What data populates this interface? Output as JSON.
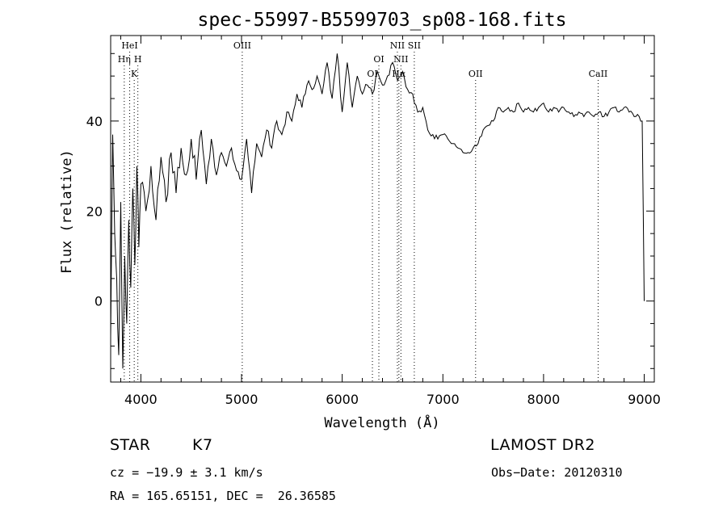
{
  "chart_data": {
    "type": "line",
    "title": "spec-55997-B5599703_sp08-168.fits",
    "xlabel": "Wavelength (Å)",
    "ylabel": "Flux (relative)",
    "xlim": [
      3700,
      9100
    ],
    "ylim": [
      -18,
      59
    ],
    "xticks": [
      4000,
      5000,
      6000,
      7000,
      8000,
      9000
    ],
    "yticks": [
      0,
      20,
      40
    ],
    "grid": false,
    "series": [
      {
        "x": [
          3700,
          3720,
          3740,
          3760,
          3780,
          3800,
          3820,
          3840,
          3860,
          3880,
          3900,
          3920,
          3940,
          3960,
          3980,
          4000,
          4050,
          4100,
          4150,
          4200,
          4250,
          4300,
          4350,
          4400,
          4450,
          4500,
          4550,
          4600,
          4650,
          4700,
          4750,
          4800,
          4850,
          4900,
          4950,
          5000,
          5050,
          5100,
          5150,
          5200,
          5250,
          5300,
          5350,
          5400,
          5450,
          5500,
          5550,
          5600,
          5650,
          5700,
          5750,
          5800,
          5850,
          5900,
          5950,
          6000,
          6050,
          6100,
          6150,
          6200,
          6250,
          6300,
          6350,
          6400,
          6450,
          6500,
          6550,
          6600,
          6650,
          6700,
          6750,
          6800,
          6850,
          6900,
          6950,
          7000,
          7050,
          7100,
          7150,
          7200,
          7250,
          7300,
          7350,
          7400,
          7450,
          7500,
          7550,
          7600,
          7650,
          7700,
          7750,
          7800,
          7850,
          7900,
          7950,
          8000,
          8050,
          8100,
          8150,
          8200,
          8250,
          8300,
          8350,
          8400,
          8450,
          8500,
          8550,
          8600,
          8650,
          8700,
          8750,
          8800,
          8850,
          8900,
          8950,
          8980,
          9000
        ],
        "y": [
          -8,
          37,
          15,
          5,
          -12,
          22,
          -15,
          10,
          -5,
          18,
          3,
          25,
          8,
          30,
          12,
          26,
          20,
          30,
          18,
          32,
          22,
          33,
          24,
          34,
          28,
          36,
          27,
          38,
          26,
          36,
          28,
          33,
          30,
          34,
          29,
          27,
          36,
          24,
          35,
          32,
          38,
          34,
          40,
          37,
          42,
          40,
          46,
          43,
          48,
          47,
          50,
          46,
          53,
          45,
          55,
          42,
          53,
          43,
          50,
          46,
          48,
          46,
          51,
          48,
          50,
          53,
          49,
          51,
          47,
          46,
          42,
          43,
          38,
          37,
          36,
          37,
          36,
          35,
          34,
          33,
          33,
          34,
          35,
          38,
          39,
          40,
          43,
          42,
          43,
          42,
          44,
          42,
          43,
          42,
          43,
          44,
          42,
          43,
          42,
          43,
          42,
          41,
          42,
          41,
          42,
          41,
          42,
          41,
          42,
          43,
          42,
          43,
          42,
          41,
          41,
          40,
          0
        ]
      }
    ],
    "line_markers": [
      {
        "label": "HeI",
        "wavelength": 3889,
        "row": 1
      },
      {
        "label": "Hη",
        "wavelength": 3835,
        "row": 2
      },
      {
        "label": "H",
        "wavelength": 3970,
        "row": 2
      },
      {
        "label": "K",
        "wavelength": 3934,
        "row": 3
      },
      {
        "label": "OIII",
        "wavelength": 5007,
        "row": 1
      },
      {
        "label": "OI",
        "wavelength": 6300,
        "row": 3
      },
      {
        "label": "OI",
        "wavelength": 6364,
        "row": 2
      },
      {
        "label": "NII",
        "wavelength": 6548,
        "row": 1
      },
      {
        "label": "NII",
        "wavelength": 6583,
        "row": 2
      },
      {
        "label": "Hα",
        "wavelength": 6563,
        "row": 3
      },
      {
        "label": "SII",
        "wavelength": 6716,
        "row": 1
      },
      {
        "label": "OII",
        "wavelength": 7325,
        "row": 3
      },
      {
        "label": "CaII",
        "wavelength": 8542,
        "row": 3
      }
    ]
  },
  "info": {
    "object_class": "STAR",
    "subclass": "K7",
    "survey": "LAMOST DR2",
    "redshift": "cz = −19.9 ± 3.1 km/s",
    "obs_date": "Obs−Date: 20120310",
    "coords": "RA = 165.65151, DEC =  26.36585"
  }
}
